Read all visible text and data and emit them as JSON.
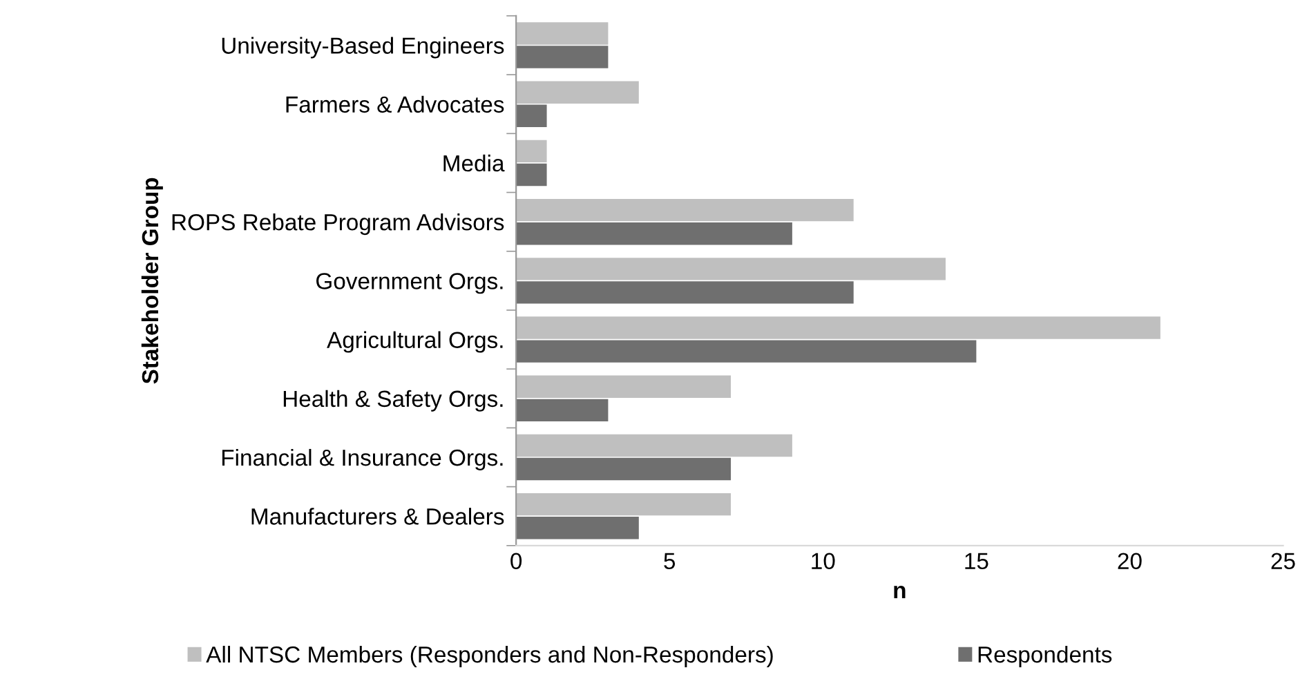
{
  "chart_data": {
    "type": "bar",
    "orientation": "horizontal",
    "xlabel": "n",
    "ylabel": "Stakeholder Group",
    "categories": [
      "University-Based Engineers",
      "Farmers & Advocates",
      "Media",
      "ROPS Rebate Program Advisors",
      "Government Orgs.",
      "Agricultural Orgs.",
      "Health & Safety Orgs.",
      "Financial & Insurance Orgs.",
      "Manufacturers & Dealers"
    ],
    "series": [
      {
        "name": "All NTSC Members (Responders and Non-Responders)",
        "color": "#bfbfbf",
        "values": [
          3,
          4,
          1,
          11,
          14,
          21,
          7,
          9,
          7
        ]
      },
      {
        "name": "Respondents",
        "color": "#6f6f6f",
        "values": [
          3,
          1,
          1,
          9,
          11,
          15,
          3,
          7,
          4
        ]
      }
    ],
    "xlim": [
      0,
      25
    ],
    "xticks": [
      0,
      5,
      10,
      15,
      20,
      25
    ],
    "grid": false,
    "legend": "bottom"
  }
}
